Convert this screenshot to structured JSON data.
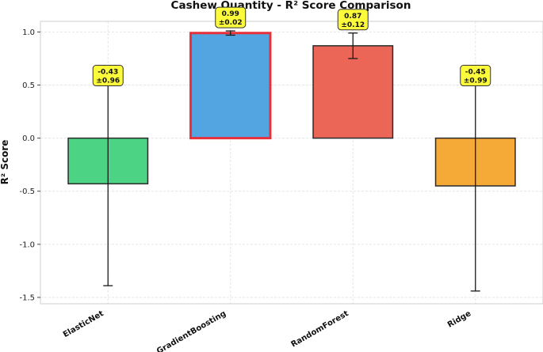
{
  "chart_data": {
    "type": "bar",
    "title": "Cashew Quantity - R² Score Comparison",
    "xlabel": "",
    "ylabel": "R² Score",
    "categories": [
      "ElasticNet",
      "GradientBoosting",
      "RandomForest",
      "Ridge"
    ],
    "values": [
      -0.43,
      0.99,
      0.87,
      -0.45
    ],
    "errors": [
      0.96,
      0.02,
      0.12,
      0.99
    ],
    "value_labels": [
      "-0.43",
      "0.99",
      "0.87",
      "-0.45"
    ],
    "error_labels": [
      "±0.96",
      "±0.02",
      "±0.12",
      "±0.99"
    ],
    "colors": [
      "#4cd384",
      "#52a5e0",
      "#ec6657",
      "#f5a936"
    ],
    "highlight": "GradientBoosting",
    "highlight_color": "#e8303a",
    "label_bg_color": "#fbfb3c",
    "ylim": [
      -1.56,
      1.1
    ],
    "yticks": [
      "1.0",
      "0.5",
      "0.0",
      "-0.5",
      "-1.0",
      "-1.5"
    ],
    "ytick_values": [
      1.0,
      0.5,
      0.0,
      -0.5,
      -1.0,
      -1.5
    ],
    "grid": true,
    "legend": "none"
  }
}
